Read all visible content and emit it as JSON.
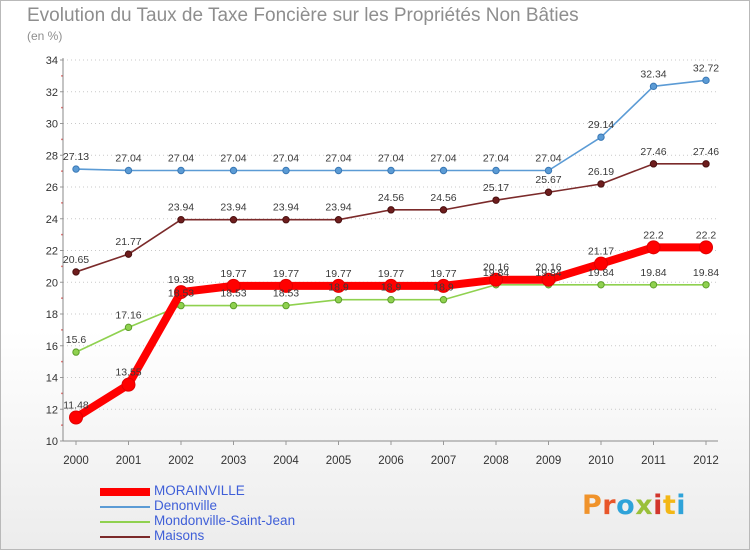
{
  "chart_data": {
    "type": "line",
    "title": "Evolution du Taux de Taxe Foncière sur les Propriétés Non Bâties",
    "subtitle": "(en %)",
    "xlabel": "",
    "ylabel": "",
    "ylim": [
      10,
      34
    ],
    "yticks": [
      10,
      12,
      14,
      16,
      18,
      20,
      22,
      24,
      26,
      28,
      30,
      32,
      34
    ],
    "categories": [
      "2000",
      "2001",
      "2002",
      "2003",
      "2004",
      "2005",
      "2006",
      "2007",
      "2008",
      "2009",
      "2010",
      "2011",
      "2012"
    ],
    "grid": "horizontal dotted",
    "legend_position": "bottom-left",
    "series": [
      {
        "name": "Denonville",
        "color": "#5b9bd5",
        "values": [
          27.13,
          27.04,
          27.04,
          27.04,
          27.04,
          27.04,
          27.04,
          27.04,
          27.04,
          27.04,
          29.14,
          32.34,
          32.72
        ],
        "labels": [
          "27.13",
          "27.04",
          "27.04",
          "27.04",
          "27.04",
          "27.04",
          "27.04",
          "27.04",
          "27.04",
          "27.04",
          "29.14",
          "32.34",
          "32.72"
        ]
      },
      {
        "name": "Maisons",
        "color": "#7b2a2a",
        "values": [
          20.65,
          21.77,
          23.94,
          23.94,
          23.94,
          23.94,
          24.56,
          24.56,
          25.17,
          25.67,
          26.19,
          27.46,
          27.46
        ],
        "labels": [
          "20.65",
          "21.77",
          "23.94",
          "23.94",
          "23.94",
          "23.94",
          "24.56",
          "24.56",
          "25.17",
          "25.67",
          "26.19",
          "27.46",
          "27.46"
        ]
      },
      {
        "name": "Mondonville-Saint-Jean",
        "color": "#8fd14f",
        "values": [
          15.6,
          17.16,
          18.53,
          18.53,
          18.53,
          18.9,
          18.9,
          18.9,
          19.84,
          19.84,
          19.84,
          19.84,
          19.84
        ],
        "labels": [
          "15.6",
          "17.16",
          "18.53",
          "18.53",
          "18.53",
          "18.9",
          "18.9",
          "18.9",
          "19.84",
          "19.84",
          "19.84",
          "19.84",
          "19.84"
        ]
      },
      {
        "name": "MORAINVILLE",
        "color": "#ff0000",
        "values": [
          11.48,
          13.55,
          19.38,
          19.77,
          19.77,
          19.77,
          19.77,
          19.77,
          20.16,
          20.16,
          21.17,
          22.2,
          22.2
        ],
        "labels": [
          "11.48",
          "13.55",
          "19.38",
          "19.77",
          "19.77",
          "19.77",
          "19.77",
          "19.77",
          "20.16",
          "20.16",
          "21.17",
          "22.2",
          "22.2"
        ]
      }
    ]
  },
  "legend": {
    "items": [
      "MORAINVILLE",
      "Denonville",
      "Mondonville-Saint-Jean",
      "Maisons"
    ]
  },
  "logo": {
    "text": "Proxiti",
    "letter_colors": [
      "#f0932b",
      "#e8562a",
      "#2fa3d9",
      "#9ac03a",
      "#d2362d",
      "#f3b716",
      "#2fa3d9"
    ]
  }
}
